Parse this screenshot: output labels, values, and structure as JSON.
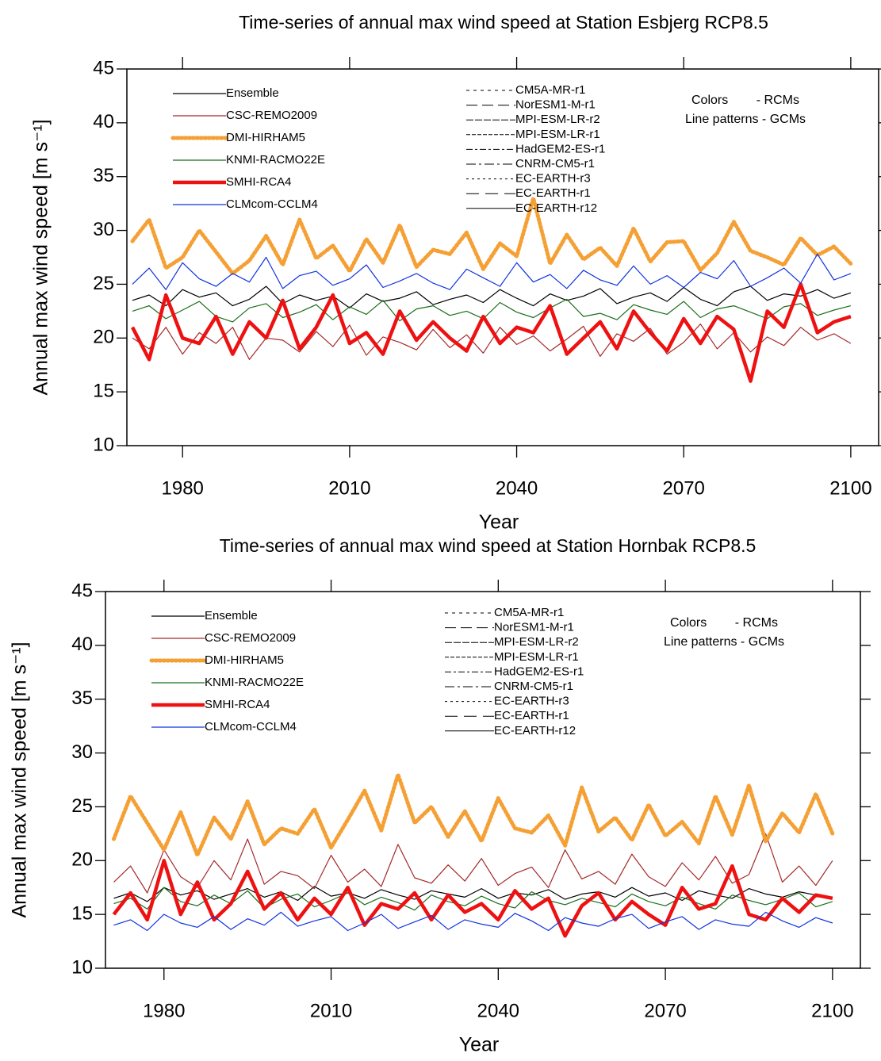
{
  "chart_data": [
    {
      "type": "line",
      "title": "Time-series of annual max wind speed at Station Esbjerg RCP8.5",
      "x_label": "Year",
      "y_label": "Annual max wind speed [m s⁻¹]",
      "annotations": [
        "Colors        - RCMs",
        "Line patterns - GCMs"
      ],
      "xlim": [
        1970,
        2105
      ],
      "xticks": [
        1980,
        2010,
        2040,
        2070,
        2100
      ],
      "ylim": [
        10,
        45
      ],
      "yticks": [
        10,
        15,
        20,
        25,
        30,
        35,
        40,
        45
      ],
      "x": [
        1971,
        1974,
        1977,
        1980,
        1983,
        1986,
        1989,
        1992,
        1995,
        1998,
        2001,
        2004,
        2007,
        2010,
        2013,
        2016,
        2019,
        2022,
        2025,
        2028,
        2031,
        2034,
        2037,
        2040,
        2043,
        2046,
        2049,
        2052,
        2055,
        2058,
        2061,
        2064,
        2067,
        2070,
        2073,
        2076,
        2079,
        2082,
        2085,
        2088,
        2091,
        2094,
        2097,
        2100
      ],
      "series": [
        {
          "name": "Ensemble",
          "color": "#000000",
          "width": 1.2,
          "dash": "",
          "values": [
            23.5,
            24,
            23,
            24.5,
            23.8,
            24.2,
            23,
            23.6,
            24.8,
            23.2,
            24,
            23.5,
            23.9,
            22.8,
            24.1,
            23.4,
            23.7,
            24.3,
            23.1,
            23.6,
            24,
            23.3,
            24.5,
            23.7,
            23,
            24.1,
            23.5,
            23.9,
            24.6,
            23.2,
            23.8,
            24.2,
            23.4,
            24.7,
            23.6,
            23,
            24.3,
            24.8,
            23.5,
            24.1,
            23.9,
            24.5,
            23.7,
            24.2
          ]
        },
        {
          "name": "CSC-REMO2009",
          "color": "#a52a2a",
          "width": 1.2,
          "dash": "",
          "values": [
            20,
            19,
            21,
            18.5,
            20.5,
            19.5,
            21,
            18,
            20,
            19.8,
            18.7,
            20.6,
            19.2,
            21.2,
            18.4,
            20.1,
            19.6,
            18.9,
            20.8,
            19.1,
            20.3,
            18.6,
            21,
            19.4,
            20.2,
            18.8,
            19.9,
            21.1,
            18.3,
            20.4,
            19.7,
            20.9,
            18.5,
            19.6,
            21.3,
            19,
            20.5,
            18.7,
            20.1,
            19.3,
            21,
            19.8,
            20.4,
            19.5
          ]
        },
        {
          "name": "DMI-HIRHAM5",
          "color": "#f5a035",
          "width": 5,
          "dash": "2,3",
          "values": [
            29,
            31,
            26.5,
            27.5,
            30,
            28,
            26,
            27.2,
            29.5,
            26.8,
            31,
            27.4,
            28.6,
            26.2,
            29.2,
            27,
            30.5,
            26.6,
            28.2,
            27.8,
            29.8,
            26.4,
            28.8,
            27.6,
            33,
            26.9,
            29.6,
            27.3,
            28.4,
            26.7,
            30.2,
            27.1,
            28.9,
            29,
            26.3,
            27.9,
            30.8,
            28.1,
            27.5,
            26.8,
            29.3,
            27.7,
            28.5,
            26.9
          ]
        },
        {
          "name": "KNMI-RACMO22E",
          "color": "#1a6e1a",
          "width": 1.2,
          "dash": "",
          "values": [
            22.5,
            23,
            21.8,
            22.6,
            23.4,
            22,
            21.5,
            22.8,
            23.2,
            21.9,
            22.4,
            23.1,
            21.7,
            22.9,
            22.2,
            23.5,
            21.6,
            22.7,
            23,
            22.1,
            22.5,
            21.8,
            23.3,
            22.4,
            21.9,
            22.8,
            23.6,
            22,
            22.3,
            21.7,
            23.1,
            22.6,
            22.2,
            23.4,
            21.9,
            22.7,
            23,
            22.4,
            21.8,
            22.9,
            23.2,
            22.1,
            22.6,
            23
          ]
        },
        {
          "name": "SMHI-RCA4",
          "color": "#ee1111",
          "width": 4.5,
          "dash": "",
          "values": [
            21,
            18,
            24,
            20,
            19.5,
            22,
            18.5,
            21.5,
            20,
            23.5,
            19,
            21,
            24,
            19.5,
            20.5,
            18.5,
            22.5,
            19.8,
            21.5,
            20,
            18.8,
            22,
            19.5,
            21,
            20.5,
            23,
            18.5,
            20,
            21.5,
            19,
            22.5,
            20.5,
            18.8,
            21.8,
            19.5,
            22,
            20.8,
            16,
            22.5,
            21,
            25,
            20.5,
            21.5,
            22
          ]
        },
        {
          "name": "CLMcom-CCLM4",
          "color": "#1133dd",
          "width": 1.2,
          "dash": "",
          "values": [
            25,
            26.5,
            24.5,
            27,
            25.5,
            24.8,
            26,
            25.2,
            27.5,
            24.6,
            25.8,
            26.2,
            24.9,
            25.5,
            26.8,
            24.7,
            25.3,
            26,
            25.1,
            24.5,
            26.4,
            25.6,
            24.8,
            27,
            25.2,
            25.9,
            24.6,
            26.3,
            25.4,
            24.9,
            26.7,
            25,
            25.8,
            24.7,
            26.1,
            25.5,
            27.2,
            24.8,
            25.6,
            26.5,
            25.1,
            27.8,
            25.4,
            26
          ]
        }
      ],
      "pattern_legend": [
        {
          "name": "CM5A-MR-r1",
          "dash": "4,5"
        },
        {
          "name": "NorESM1-M-r1",
          "dash": "14,6"
        },
        {
          "name": "MPI-ESM-LR-r2",
          "dash": "9,2"
        },
        {
          "name": "MPI-ESM-LR-r1",
          "dash": "5,2"
        },
        {
          "name": "HadGEM2-ES-r1",
          "dash": "8,3,3,3"
        },
        {
          "name": "CNRM-CM5-r1",
          "dash": "12,4,3,4"
        },
        {
          "name": "EC-EARTH-r3",
          "dash": "3,4"
        },
        {
          "name": "EC-EARTH-r1",
          "dash": "16,8"
        },
        {
          "name": "EC-EARTH-r12",
          "dash": ""
        }
      ]
    },
    {
      "type": "line",
      "title": "Time-series of annual max wind speed at Station Hornbak RCP8.5",
      "x_label": "Year",
      "y_label": "Annual max wind speed [m s⁻¹]",
      "annotations": [
        "Colors        - RCMs",
        "Line patterns - GCMs"
      ],
      "xlim": [
        1969.5,
        2105
      ],
      "xticks": [
        1980,
        2010,
        2040,
        2070,
        2100
      ],
      "ylim": [
        10,
        45
      ],
      "yticks": [
        10,
        15,
        20,
        25,
        30,
        35,
        40,
        45
      ],
      "x": [
        1971,
        1974,
        1977,
        1980,
        1983,
        1986,
        1989,
        1992,
        1995,
        1998,
        2001,
        2004,
        2007,
        2010,
        2013,
        2016,
        2019,
        2022,
        2025,
        2028,
        2031,
        2034,
        2037,
        2040,
        2043,
        2046,
        2049,
        2052,
        2055,
        2058,
        2061,
        2064,
        2067,
        2070,
        2073,
        2076,
        2079,
        2082,
        2085,
        2088,
        2091,
        2094,
        2097,
        2100
      ],
      "series": [
        {
          "name": "Ensemble",
          "color": "#000000",
          "width": 1.2,
          "dash": "",
          "values": [
            16.5,
            17,
            16.2,
            17.5,
            16.8,
            17.2,
            16.4,
            16.9,
            17.4,
            16.6,
            17.1,
            16.3,
            17.6,
            16.7,
            17,
            16.5,
            17.3,
            16.8,
            16.4,
            17.2,
            16.9,
            16.6,
            17.4,
            16.5,
            17,
            16.8,
            17.3,
            16.4,
            16.9,
            17.1,
            16.6,
            17.5,
            16.7,
            17,
            16.3,
            17.2,
            16.8,
            16.5,
            17.4,
            16.9,
            16.6,
            17.1,
            16.8,
            16.5
          ]
        },
        {
          "name": "CSC-REMO2009",
          "color": "#a52a2a",
          "width": 1.2,
          "dash": "",
          "values": [
            18,
            19.5,
            17,
            21,
            18.5,
            17.5,
            20,
            18.2,
            22,
            17.8,
            19,
            18.6,
            17.4,
            20.5,
            18,
            19.2,
            17.6,
            21.5,
            18.4,
            17.9,
            19.6,
            18.1,
            20.2,
            17.7,
            18.8,
            19.4,
            17.5,
            21,
            18.3,
            19,
            17.8,
            20.6,
            18.5,
            17.6,
            19.8,
            18.2,
            20.4,
            17.9,
            18.7,
            22.5,
            18,
            19.5,
            17.7,
            20
          ]
        },
        {
          "name": "DMI-HIRHAM5",
          "color": "#f5a035",
          "width": 5,
          "dash": "2,3",
          "values": [
            22,
            26,
            23.5,
            21,
            24.5,
            20.5,
            24,
            22,
            25.5,
            21.5,
            23,
            22.5,
            24.8,
            21.2,
            23.8,
            26.5,
            22.8,
            28,
            23.5,
            25,
            22.2,
            24.6,
            21.8,
            25.8,
            23,
            22.6,
            24.2,
            21.4,
            26.8,
            22.7,
            24,
            21.9,
            25.2,
            22.3,
            23.6,
            21.6,
            26,
            22.4,
            27,
            21.8,
            24.4,
            22.6,
            26.2,
            22.5
          ]
        },
        {
          "name": "KNMI-RACMO22E",
          "color": "#1a6e1a",
          "width": 1.2,
          "dash": "",
          "values": [
            16,
            16.5,
            15.5,
            17.5,
            16.2,
            15.8,
            16.8,
            16,
            17.2,
            15.6,
            16.4,
            16.9,
            15.7,
            16.3,
            17,
            15.9,
            16.6,
            16.1,
            15.4,
            16.8,
            16.2,
            15.8,
            16.7,
            16,
            15.6,
            17.1,
            16.3,
            15.9,
            16.5,
            16.1,
            15.7,
            16.9,
            16.2,
            15.8,
            16.6,
            16,
            15.5,
            16.8,
            16.3,
            15.9,
            16.4,
            17,
            15.7,
            16.2
          ]
        },
        {
          "name": "SMHI-RCA4",
          "color": "#ee1111",
          "width": 4.5,
          "dash": "",
          "values": [
            15,
            17,
            14.5,
            20,
            15,
            18,
            14.5,
            16,
            19,
            15.5,
            17,
            14.5,
            16.5,
            15,
            17.5,
            14,
            16,
            15.5,
            17,
            14.5,
            16.8,
            15.2,
            16,
            14.5,
            17.2,
            15.5,
            16.5,
            13,
            15.8,
            17,
            14.5,
            16.2,
            15,
            14,
            17.5,
            15.5,
            16,
            19.5,
            15,
            14.5,
            16.5,
            15.2,
            16.8,
            16.5
          ]
        },
        {
          "name": "CLMcom-CCLM4",
          "color": "#1133dd",
          "width": 1.2,
          "dash": "",
          "values": [
            14,
            14.5,
            13.5,
            15,
            14.2,
            13.8,
            14.8,
            13.6,
            14.6,
            14,
            15.2,
            13.9,
            14.4,
            14.8,
            13.5,
            14.2,
            15,
            13.7,
            14.3,
            14.9,
            13.6,
            14.5,
            14.1,
            13.8,
            15.1,
            14.4,
            13.5,
            14.7,
            14.2,
            13.9,
            14.6,
            15,
            13.7,
            14.3,
            14.8,
            13.6,
            14.5,
            14.1,
            13.9,
            15.2,
            14.4,
            13.8,
            14.7,
            14.2
          ]
        }
      ],
      "pattern_legend": [
        {
          "name": "CM5A-MR-r1",
          "dash": "4,5"
        },
        {
          "name": "NorESM1-M-r1",
          "dash": "14,6"
        },
        {
          "name": "MPI-ESM-LR-r2",
          "dash": "9,2"
        },
        {
          "name": "MPI-ESM-LR-r1",
          "dash": "5,2"
        },
        {
          "name": "HadGEM2-ES-r1",
          "dash": "8,3,3,3"
        },
        {
          "name": "CNRM-CM5-r1",
          "dash": "12,4,3,4"
        },
        {
          "name": "EC-EARTH-r3",
          "dash": "3,4"
        },
        {
          "name": "EC-EARTH-r1",
          "dash": "16,8"
        },
        {
          "name": "EC-EARTH-r12",
          "dash": ""
        }
      ]
    }
  ]
}
